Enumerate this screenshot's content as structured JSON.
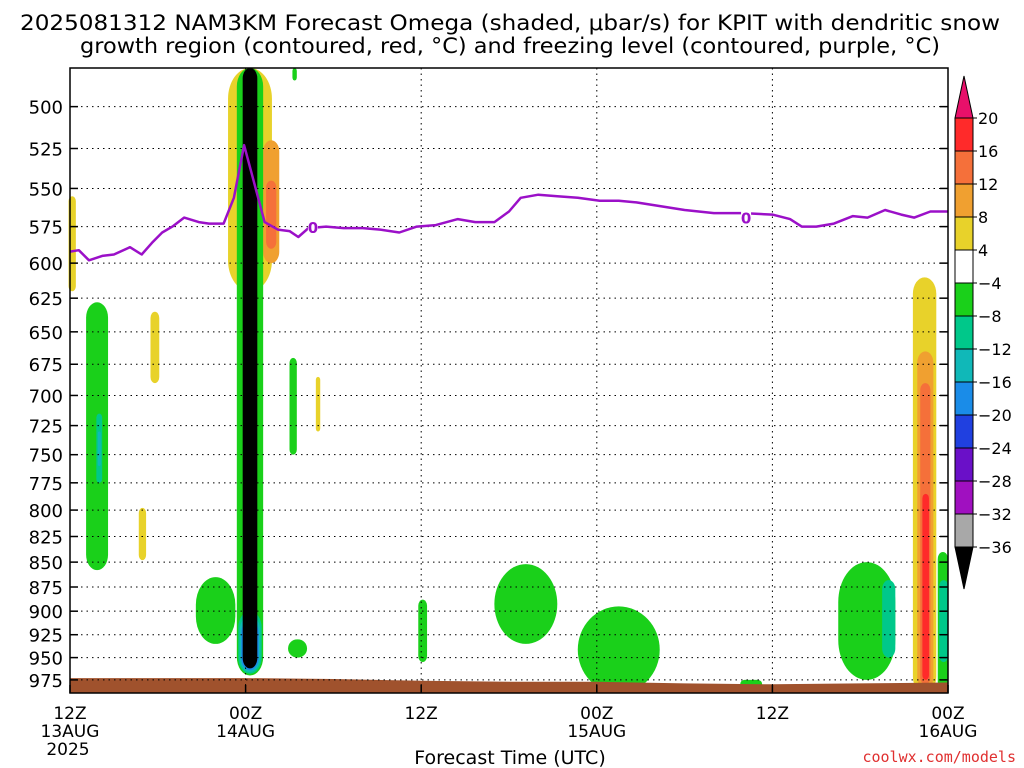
{
  "chart_data": {
    "type": "heatmap",
    "title_line1": "2025081312 NAM3KM Forecast Omega (shaded, μbar/s) for KPIT with dendritic snow",
    "title_line2": "growth region (contoured, red, °C) and freezing level (contoured, purple, °C)",
    "xlabel": "Forecast Time (UTC)",
    "ylabel": "",
    "credit": "coolwx.com/models",
    "x_range_hours": [
      0,
      60
    ],
    "y_range_hpa": [
      478,
      990
    ],
    "y_scale": "log-pressure (inverted)",
    "grid": true,
    "x_ticks": [
      {
        "hour": 0,
        "label": "12Z",
        "date": "13AUG",
        "year": "2025"
      },
      {
        "hour": 12,
        "label": "00Z",
        "date": "14AUG",
        "year": ""
      },
      {
        "hour": 24,
        "label": "12Z",
        "date": "",
        "year": ""
      },
      {
        "hour": 36,
        "label": "00Z",
        "date": "15AUG",
        "year": ""
      },
      {
        "hour": 48,
        "label": "12Z",
        "date": "",
        "year": ""
      },
      {
        "hour": 60,
        "label": "00Z",
        "date": "16AUG",
        "year": ""
      }
    ],
    "y_ticks": [
      500,
      525,
      550,
      575,
      600,
      625,
      650,
      675,
      700,
      725,
      750,
      775,
      800,
      825,
      850,
      875,
      900,
      925,
      950,
      975
    ],
    "colorbar": {
      "labels": [
        "20",
        "16",
        "12",
        "8",
        "4",
        "−4",
        "−8",
        "−12",
        "−16",
        "−20",
        "−24",
        "−28",
        "−32",
        "−36"
      ],
      "bins": [
        {
          "range": "16 to 20",
          "color": "#ff2a2a"
        },
        {
          "range": "12 to 16",
          "color": "#f5703a"
        },
        {
          "range": "8 to 12",
          "color": "#f0a030"
        },
        {
          "range": "4 to 8",
          "color": "#e8d22a"
        },
        {
          "range": "-4 to 4",
          "color": "#ffffff"
        },
        {
          "range": "-8 to -4",
          "color": "#1ad01a"
        },
        {
          "range": "-12 to -8",
          "color": "#00c88a"
        },
        {
          "range": "-16 to -12",
          "color": "#10b8b8"
        },
        {
          "range": "-20 to -16",
          "color": "#1a8ce8"
        },
        {
          "range": "-24 to -20",
          "color": "#2040e0"
        },
        {
          "range": "-28 to -24",
          "color": "#6a10c8"
        },
        {
          "range": "-32 to -28",
          "color": "#a010c0"
        },
        {
          "range": "-36 to -32",
          "color": "#a8a8a8"
        }
      ],
      "top_color": "#e8106a",
      "bottom_color": "#000000"
    },
    "freezing_level_label": "0",
    "freezing_level": [
      {
        "h": 0,
        "p": 592
      },
      {
        "h": 0.6,
        "p": 591
      },
      {
        "h": 1.3,
        "p": 598
      },
      {
        "h": 2.2,
        "p": 595
      },
      {
        "h": 3.0,
        "p": 594
      },
      {
        "h": 4.1,
        "p": 589
      },
      {
        "h": 4.9,
        "p": 594
      },
      {
        "h": 5.6,
        "p": 586
      },
      {
        "h": 6.3,
        "p": 579
      },
      {
        "h": 7.0,
        "p": 575
      },
      {
        "h": 7.8,
        "p": 569
      },
      {
        "h": 8.8,
        "p": 572
      },
      {
        "h": 9.5,
        "p": 573
      },
      {
        "h": 10.5,
        "p": 573
      },
      {
        "h": 11.2,
        "p": 556
      },
      {
        "h": 11.9,
        "p": 523
      },
      {
        "h": 12.6,
        "p": 547
      },
      {
        "h": 13.3,
        "p": 572
      },
      {
        "h": 14.2,
        "p": 577
      },
      {
        "h": 15.0,
        "p": 578
      },
      {
        "h": 15.6,
        "p": 582
      },
      {
        "h": 16.3,
        "p": 576
      },
      {
        "h": 17.5,
        "p": 575
      },
      {
        "h": 18.7,
        "p": 576
      },
      {
        "h": 20.0,
        "p": 576
      },
      {
        "h": 21.2,
        "p": 577
      },
      {
        "h": 22.5,
        "p": 579
      },
      {
        "h": 23.7,
        "p": 575
      },
      {
        "h": 25.0,
        "p": 574
      },
      {
        "h": 26.5,
        "p": 570
      },
      {
        "h": 27.7,
        "p": 572
      },
      {
        "h": 29.0,
        "p": 572
      },
      {
        "h": 30.0,
        "p": 565
      },
      {
        "h": 30.8,
        "p": 556
      },
      {
        "h": 32.0,
        "p": 554
      },
      {
        "h": 33.3,
        "p": 555
      },
      {
        "h": 34.7,
        "p": 556
      },
      {
        "h": 36.2,
        "p": 558
      },
      {
        "h": 37.5,
        "p": 558
      },
      {
        "h": 38.7,
        "p": 559
      },
      {
        "h": 40.0,
        "p": 561
      },
      {
        "h": 42.0,
        "p": 564
      },
      {
        "h": 44.0,
        "p": 566
      },
      {
        "h": 46.0,
        "p": 566
      },
      {
        "h": 48.0,
        "p": 567
      },
      {
        "h": 49.2,
        "p": 570
      },
      {
        "h": 50.0,
        "p": 575
      },
      {
        "h": 51.0,
        "p": 575
      },
      {
        "h": 52.2,
        "p": 573
      },
      {
        "h": 53.5,
        "p": 568
      },
      {
        "h": 54.5,
        "p": 569
      },
      {
        "h": 55.7,
        "p": 564
      },
      {
        "h": 56.8,
        "p": 567
      },
      {
        "h": 57.7,
        "p": 569
      },
      {
        "h": 58.8,
        "p": 565
      },
      {
        "h": 60.0,
        "p": 565
      }
    ],
    "omega_regions": [
      {
        "bin": "4 to 8",
        "h": [
          -0.1,
          0.4
        ],
        "p": [
          555,
          620
        ]
      },
      {
        "bin": "-8 to -4",
        "h": [
          1.1,
          2.6
        ],
        "p": [
          628,
          858
        ]
      },
      {
        "bin": "-12 to -8",
        "h": [
          1.8,
          2.2
        ],
        "p": [
          715,
          775
        ]
      },
      {
        "bin": "-16 to -12",
        "h": [
          1.9,
          2.1
        ],
        "p": [
          730,
          760
        ]
      },
      {
        "bin": "4 to 8",
        "h": [
          5.5,
          6.1
        ],
        "p": [
          635,
          690
        ]
      },
      {
        "bin": "4 to 8",
        "h": [
          4.7,
          5.2
        ],
        "p": [
          798,
          848
        ]
      },
      {
        "bin": "-8 to -4",
        "h": [
          8.6,
          11.3
        ],
        "p": [
          865,
          935
        ]
      },
      {
        "bin": "4 to 8",
        "h": [
          10.8,
          13.8
        ],
        "p": [
          478,
          620
        ]
      },
      {
        "bin": "8 to 12",
        "h": [
          13.2,
          14.3
        ],
        "p": [
          520,
          600
        ]
      },
      {
        "bin": "12 to 16",
        "h": [
          13.4,
          14.1
        ],
        "p": [
          545,
          590
        ]
      },
      {
        "bin": "-8 to -4",
        "h": [
          11.4,
          13.2
        ],
        "p": [
          478,
          970
        ]
      },
      {
        "bin": "-12 to -8",
        "h": [
          11.5,
          13.1
        ],
        "p": [
          900,
          968
        ]
      },
      {
        "bin": "-16 to -12",
        "h": [
          11.6,
          13.0
        ],
        "p": [
          905,
          966
        ]
      },
      {
        "bin": "-20 to -16",
        "h": [
          11.7,
          12.9
        ],
        "p": [
          910,
          964
        ]
      },
      {
        "bin": "-36 to -32",
        "h": [
          11.8,
          12.8
        ],
        "p": [
          478,
          962
        ]
      },
      {
        "bin": "-8 to -4",
        "h": [
          15.2,
          15.5
        ],
        "p": [
          478,
          485
        ]
      },
      {
        "bin": "-8 to -4",
        "h": [
          15.0,
          15.5
        ],
        "p": [
          670,
          750
        ]
      },
      {
        "bin": "4 to 8",
        "h": [
          16.8,
          17.1
        ],
        "p": [
          685,
          730
        ]
      },
      {
        "bin": "-8 to -4",
        "h": [
          14.9,
          16.2
        ],
        "p": [
          930,
          950
        ]
      },
      {
        "bin": "-8 to -4",
        "h": [
          23.8,
          24.4
        ],
        "p": [
          888,
          955
        ]
      },
      {
        "bin": "-8 to -4",
        "h": [
          29.0,
          33.3
        ],
        "p": [
          852,
          935
        ]
      },
      {
        "bin": "-8 to -4",
        "h": [
          34.7,
          40.3
        ],
        "p": [
          895,
          990
        ]
      },
      {
        "bin": "-8 to -4",
        "h": [
          45.8,
          47.3
        ],
        "p": [
          975,
          985
        ]
      },
      {
        "bin": "-8 to -4",
        "h": [
          52.5,
          56.4
        ],
        "p": [
          850,
          975
        ]
      },
      {
        "bin": "-12 to -8",
        "h": [
          55.5,
          56.4
        ],
        "p": [
          868,
          950
        ]
      },
      {
        "bin": "4 to 8",
        "h": [
          57.6,
          59.2
        ],
        "p": [
          610,
          990
        ]
      },
      {
        "bin": "8 to 12",
        "h": [
          57.9,
          59.0
        ],
        "p": [
          665,
          985
        ]
      },
      {
        "bin": "12 to 16",
        "h": [
          58.1,
          58.8
        ],
        "p": [
          690,
          980
        ]
      },
      {
        "bin": "16 to 20",
        "h": [
          58.25,
          58.7
        ],
        "p": [
          785,
          975
        ]
      },
      {
        "bin": "-8 to -4",
        "h": [
          59.3,
          60.0
        ],
        "p": [
          840,
          985
        ]
      },
      {
        "bin": "-12 to -8",
        "h": [
          59.4,
          60.0
        ],
        "p": [
          868,
          955
        ]
      }
    ],
    "surface": [
      {
        "h": 0,
        "p": 973
      },
      {
        "h": 6,
        "p": 973
      },
      {
        "h": 12,
        "p": 973
      },
      {
        "h": 18,
        "p": 974
      },
      {
        "h": 24,
        "p": 976
      },
      {
        "h": 30,
        "p": 977
      },
      {
        "h": 36,
        "p": 977
      },
      {
        "h": 42,
        "p": 979
      },
      {
        "h": 48,
        "p": 980
      },
      {
        "h": 54,
        "p": 979
      },
      {
        "h": 60,
        "p": 978
      }
    ],
    "surface_color": "#a0522d",
    "freezing_color": "#9b10c8"
  }
}
